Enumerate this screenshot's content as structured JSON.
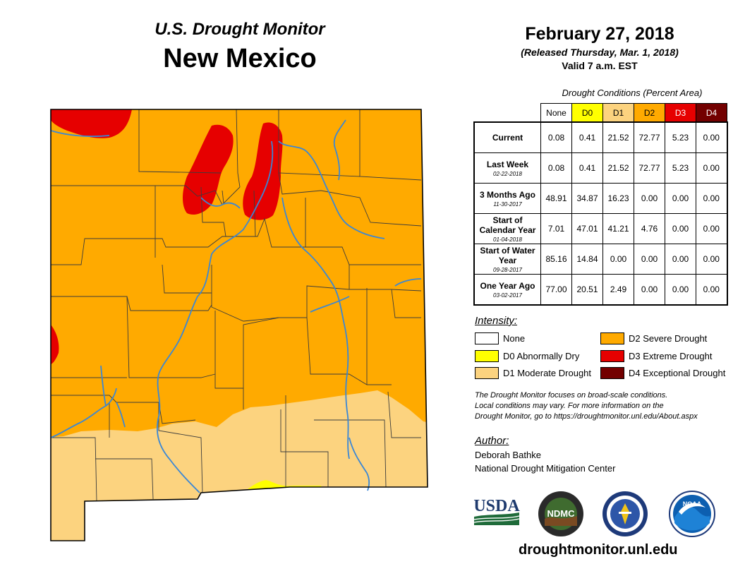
{
  "header": {
    "subtitle": "U.S. Drought Monitor",
    "title": "New Mexico",
    "date": "February 27, 2018",
    "released": "(Released Thursday, Mar. 1, 2018)",
    "valid": "Valid 7 a.m. EST"
  },
  "table": {
    "caption": "Drought Conditions (Percent Area)",
    "columns": [
      {
        "label": "None",
        "color": "#ffffff",
        "text_color": "#000000"
      },
      {
        "label": "D0",
        "color": "#ffff00",
        "text_color": "#000000"
      },
      {
        "label": "D1",
        "color": "#fcd37f",
        "text_color": "#000000"
      },
      {
        "label": "D2",
        "color": "#ffaa00",
        "text_color": "#000000"
      },
      {
        "label": "D3",
        "color": "#e60000",
        "text_color": "#ffffff"
      },
      {
        "label": "D4",
        "color": "#730000",
        "text_color": "#ffffff"
      }
    ],
    "rows": [
      {
        "label": "Current",
        "date": "",
        "values": [
          "0.08",
          "0.41",
          "21.52",
          "72.77",
          "5.23",
          "0.00"
        ]
      },
      {
        "label": "Last Week",
        "date": "02-22-2018",
        "values": [
          "0.08",
          "0.41",
          "21.52",
          "72.77",
          "5.23",
          "0.00"
        ]
      },
      {
        "label": "3 Months Ago",
        "date": "11-30-2017",
        "values": [
          "48.91",
          "34.87",
          "16.23",
          "0.00",
          "0.00",
          "0.00"
        ]
      },
      {
        "label": "Start of Calendar Year",
        "date": "01-04-2018",
        "values": [
          "7.01",
          "47.01",
          "41.21",
          "4.76",
          "0.00",
          "0.00"
        ]
      },
      {
        "label": "Start of Water Year",
        "date": "09-28-2017",
        "values": [
          "85.16",
          "14.84",
          "0.00",
          "0.00",
          "0.00",
          "0.00"
        ]
      },
      {
        "label": "One Year Ago",
        "date": "03-02-2017",
        "values": [
          "77.00",
          "20.51",
          "2.49",
          "0.00",
          "0.00",
          "0.00"
        ]
      }
    ]
  },
  "legend": {
    "title": "Intensity:",
    "items": [
      {
        "label": "None",
        "color": "#ffffff"
      },
      {
        "label": "D0 Abnormally Dry",
        "color": "#ffff00"
      },
      {
        "label": "D1 Moderate Drought",
        "color": "#fcd37f"
      },
      {
        "label": "D2 Severe Drought",
        "color": "#ffaa00"
      },
      {
        "label": "D3 Extreme Drought",
        "color": "#e60000"
      },
      {
        "label": "D4 Exceptional Drought",
        "color": "#730000"
      }
    ]
  },
  "note": {
    "line1": "The Drought Monitor focuses on broad-scale conditions.",
    "line2": "Local conditions may vary. For more information on the",
    "line3": "Drought Monitor, go to https://droughtmonitor.unl.edu/About.aspx"
  },
  "author": {
    "title": "Author:",
    "name": "Deborah Bathke",
    "org": "National Drought Mitigation Center"
  },
  "logos": {
    "usda": "USDA",
    "ndmc": "NDMC",
    "noaa": "NOAA",
    "commerce_seal": "department-of-commerce-seal-icon"
  },
  "website": "droughtmonitor.unl.edu",
  "map_colors": {
    "d1": "#fcd37f",
    "d2": "#ffaa00",
    "d3": "#e60000",
    "d0": "#ffff00",
    "county_line": "#3c3c3c",
    "river": "#3a87d6"
  }
}
